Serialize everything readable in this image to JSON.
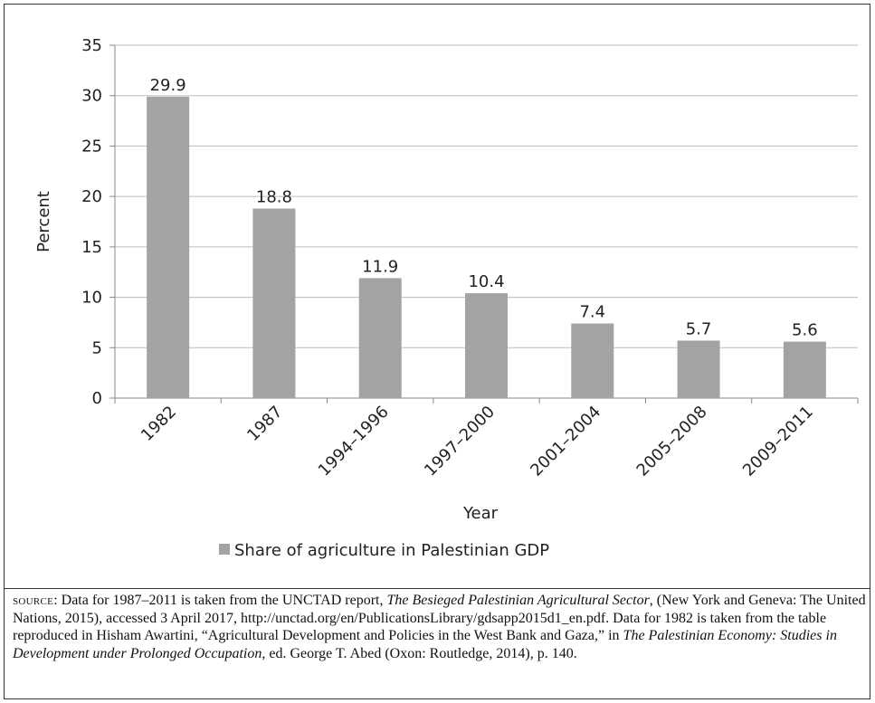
{
  "chart_data": {
    "type": "bar",
    "categories": [
      "1982",
      "1987",
      "1994–1996",
      "1997–2000",
      "2001–2004",
      "2005–2008",
      "2009–2011"
    ],
    "series": [
      {
        "name": "Share of agriculture in Palestinian GDP",
        "values": [
          29.9,
          18.8,
          11.9,
          10.4,
          7.4,
          5.7,
          5.6
        ],
        "labels": [
          "29.9",
          "18.8",
          "11.9",
          "10.4",
          "7.4",
          "5.7",
          "5.6"
        ]
      }
    ],
    "title": "",
    "xlabel": "Year",
    "ylabel": "Percent",
    "ylim": [
      0,
      35
    ],
    "yticks": [
      0,
      5,
      10,
      15,
      20,
      25,
      30,
      35
    ],
    "grid": true,
    "legend_position": "bottom",
    "colors": {
      "bar": "#a3a3a3",
      "grid": "#bdbdbd",
      "axis": "#888888",
      "text": "#222222"
    }
  },
  "source": {
    "label": "source",
    "t1": ": Data for 1987–2011 is taken from the UNCTAD report, ",
    "i1": "The Besieged Palestinian Agricultural Sector",
    "t2": ", (New York and Geneva: The United Nations, 2015), accessed 3 April 2017, http://unctad.org/en/PublicationsLibrary/gdsapp2015d1_en.pdf. Data for 1982 is taken from the table reproduced in Hisham Awartini, “Agricultural Development and Policies in the West Bank and Gaza,” in ",
    "i2": "The Palestinian Economy: Studies in Development under Prolonged Occupation",
    "t3": ", ed. George T. Abed (Oxon: Routledge, 2014), p. 140."
  }
}
